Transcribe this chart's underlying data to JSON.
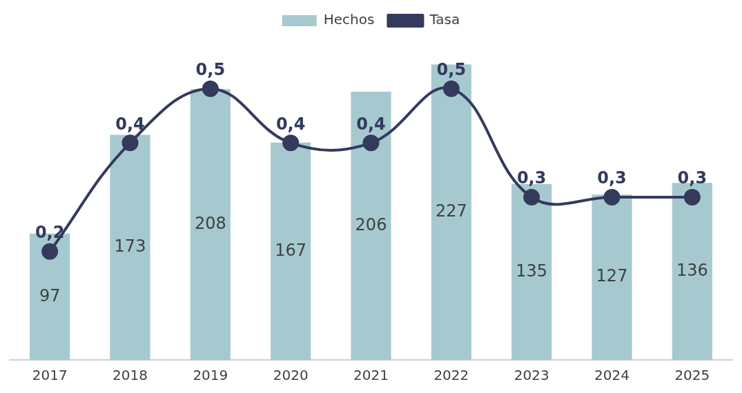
{
  "chart_data": {
    "type": "bar",
    "categories": [
      "2017",
      "2018",
      "2019",
      "2020",
      "2021",
      "2022",
      "2023",
      "2024",
      "2025"
    ],
    "series": [
      {
        "name": "Hechos",
        "color": "#a6c9d0",
        "values": [
          97,
          173,
          208,
          167,
          206,
          227,
          135,
          127,
          136
        ],
        "value_labels": [
          "97",
          "173",
          "208",
          "167",
          "206",
          "227",
          "135",
          "127",
          "136"
        ]
      },
      {
        "name": "Tasa",
        "type": "line",
        "axis": "y2",
        "color": "#333a5c",
        "marker": "circle",
        "values": [
          0.2,
          0.4,
          0.5,
          0.4,
          0.4,
          0.5,
          0.3,
          0.3,
          0.3
        ],
        "value_labels": [
          "0,2",
          "0,4",
          "0,5",
          "0,4",
          "0,4",
          "0,5",
          "0,3",
          "0,3",
          "0,3"
        ]
      }
    ],
    "tick_labels": "x",
    "grid": false,
    "legend": "top"
  }
}
